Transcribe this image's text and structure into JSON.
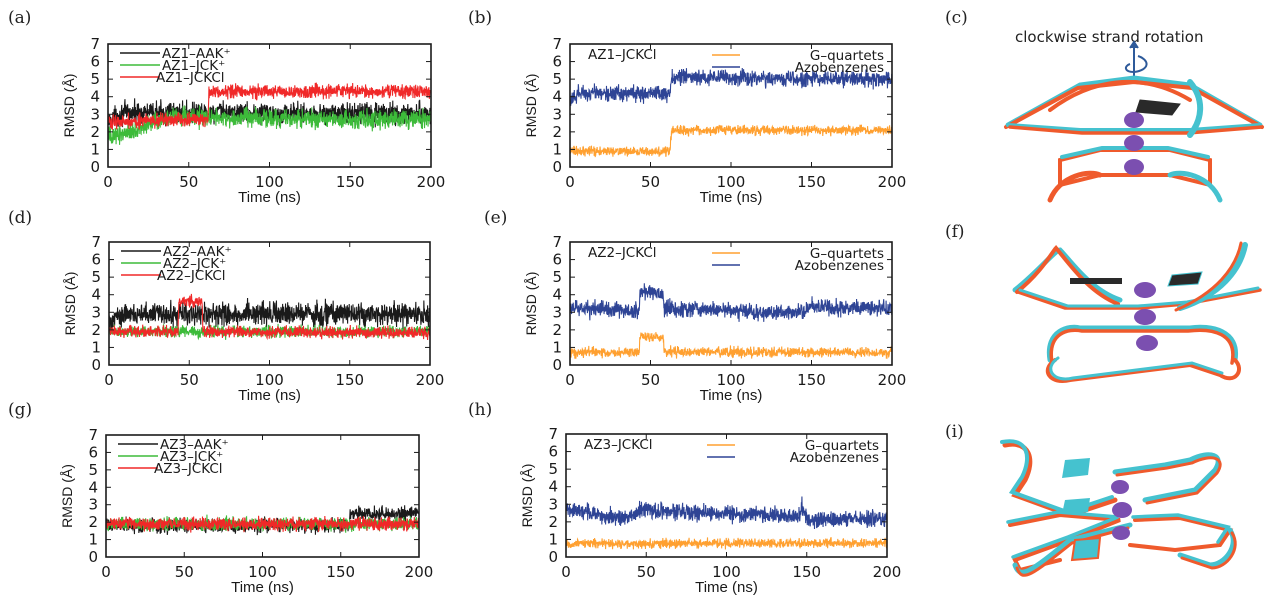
{
  "panel_labels": [
    "(a)",
    "(b)",
    "(c)",
    "(d)",
    "(e)",
    "(f)",
    "(g)",
    "(h)",
    "(i)"
  ],
  "colors": {
    "AAK": "#1a1a1a",
    "JCK": "#3dbb3a",
    "JCKCl": "#f02828",
    "g_quartets": "#ffa030",
    "azobenzenes": "#2e4495",
    "model_red": "#ef5a2c",
    "model_cyan": "#45c2cf",
    "model_dark": "#2a2a2a",
    "ion": "#7b4fb0"
  },
  "structure_panels": {
    "c": {
      "caption": "clockwise strand rotation",
      "icon": "rotation-arrow-icon"
    },
    "f": {},
    "i": {}
  },
  "chart_data": [
    {
      "id": "a",
      "type": "line",
      "xlabel": "Time (ns)",
      "ylabel": "RMSD (Å)",
      "xlim": [
        0,
        200
      ],
      "ylim": [
        0,
        7
      ],
      "xticks": [
        0,
        50,
        100,
        150,
        200
      ],
      "yticks": [
        0,
        1,
        2,
        3,
        4,
        5,
        6,
        7
      ],
      "legend_position": "top-left",
      "legend_title": "",
      "series": [
        {
          "name": "AZ1–AAK⁺",
          "color_key": "AAK",
          "noise": 0.45,
          "segments": [
            [
              0,
              2.6
            ],
            [
              10,
              3.1
            ],
            [
              60,
              3.1
            ],
            [
              200,
              3.0
            ]
          ]
        },
        {
          "name": "AZ1–JCK⁺",
          "color_key": "JCK",
          "noise": 0.4,
          "segments": [
            [
              0,
              1.7
            ],
            [
              20,
              2.2
            ],
            [
              40,
              3.0
            ],
            [
              60,
              2.8
            ],
            [
              200,
              2.7
            ]
          ]
        },
        {
          "name": "AZ1–JCKCl",
          "color_key": "JCKCl",
          "noise": 0.3,
          "segments": [
            [
              0,
              2.6
            ],
            [
              62,
              2.7
            ],
            [
              62.5,
              4.3
            ],
            [
              200,
              4.3
            ]
          ]
        }
      ]
    },
    {
      "id": "b",
      "type": "line",
      "xlabel": "Time (ns)",
      "ylabel": "RMSD (Å)",
      "xlim": [
        0,
        200
      ],
      "ylim": [
        0,
        7
      ],
      "xticks": [
        0,
        50,
        100,
        150,
        200
      ],
      "yticks": [
        0,
        1,
        2,
        3,
        4,
        5,
        6,
        7
      ],
      "legend_position": "top-right",
      "legend_title": "AZ1–JCKCl",
      "series": [
        {
          "name": "G–quartets",
          "color_key": "g_quartets",
          "noise": 0.2,
          "segments": [
            [
              0,
              0.9
            ],
            [
              62,
              0.85
            ],
            [
              63,
              2.1
            ],
            [
              200,
              2.1
            ]
          ]
        },
        {
          "name": "Azobenzenes",
          "color_key": "azobenzenes",
          "noise": 0.35,
          "segments": [
            [
              0,
              3.6
            ],
            [
              5,
              4.2
            ],
            [
              62,
              4.2
            ],
            [
              63,
              5.1
            ],
            [
              200,
              5.0
            ]
          ]
        }
      ]
    },
    {
      "id": "d",
      "type": "line",
      "xlabel": "Time (ns)",
      "ylabel": "RMSD (Å)",
      "xlim": [
        0,
        200
      ],
      "ylim": [
        0,
        7
      ],
      "xticks": [
        0,
        50,
        100,
        150,
        200
      ],
      "yticks": [
        0,
        1,
        2,
        3,
        4,
        5,
        6,
        7
      ],
      "legend_position": "top-left",
      "legend_title": "",
      "series": [
        {
          "name": "AZ2–AAK⁺",
          "color_key": "AAK",
          "noise": 0.5,
          "segments": [
            [
              0,
              2.3
            ],
            [
              5,
              2.9
            ],
            [
              200,
              2.9
            ]
          ]
        },
        {
          "name": "AZ2–JCK⁺",
          "color_key": "JCK",
          "noise": 0.25,
          "segments": [
            [
              0,
              1.9
            ],
            [
              200,
              1.9
            ]
          ]
        },
        {
          "name": "AZ2–JCKCl",
          "color_key": "JCKCl",
          "noise": 0.25,
          "segments": [
            [
              0,
              1.9
            ],
            [
              43,
              1.9
            ],
            [
              43.5,
              3.6
            ],
            [
              58,
              3.6
            ],
            [
              58.5,
              1.9
            ],
            [
              200,
              1.8
            ]
          ]
        }
      ]
    },
    {
      "id": "e",
      "type": "line",
      "xlabel": "Time (ns)",
      "ylabel": "RMSD (Å)",
      "xlim": [
        0,
        200
      ],
      "ylim": [
        0,
        7
      ],
      "xticks": [
        0,
        50,
        100,
        150,
        200
      ],
      "yticks": [
        0,
        1,
        2,
        3,
        4,
        5,
        6,
        7
      ],
      "legend_position": "top-right",
      "legend_title": "AZ2–JCKCl",
      "series": [
        {
          "name": "G–quartets",
          "color_key": "g_quartets",
          "noise": 0.22,
          "segments": [
            [
              0,
              0.7
            ],
            [
              43,
              0.75
            ],
            [
              43.5,
              1.6
            ],
            [
              58,
              1.6
            ],
            [
              58.5,
              0.75
            ],
            [
              200,
              0.7
            ]
          ]
        },
        {
          "name": "Azobenzenes",
          "color_key": "azobenzenes",
          "noise": 0.35,
          "segments": [
            [
              0,
              3.2
            ],
            [
              43,
              3.1
            ],
            [
              43.5,
              4.2
            ],
            [
              58,
              4.1
            ],
            [
              58.5,
              3.2
            ],
            [
              120,
              3.0
            ],
            [
              145,
              3.0
            ],
            [
              150,
              3.3
            ],
            [
              200,
              3.2
            ]
          ]
        }
      ]
    },
    {
      "id": "g",
      "type": "line",
      "xlabel": "Time (ns)",
      "ylabel": "RMSD (Å)",
      "xlim": [
        0,
        200
      ],
      "ylim": [
        0,
        7
      ],
      "xticks": [
        0,
        50,
        100,
        150,
        200
      ],
      "yticks": [
        0,
        1,
        2,
        3,
        4,
        5,
        6,
        7
      ],
      "legend_position": "top-left",
      "legend_title": "",
      "series": [
        {
          "name": "AZ3–AAK⁺",
          "color_key": "AAK",
          "noise": 0.3,
          "segments": [
            [
              0,
              1.8
            ],
            [
              155,
              1.8
            ],
            [
              156,
              2.5
            ],
            [
              200,
              2.5
            ]
          ]
        },
        {
          "name": "AZ3–JCK⁺",
          "color_key": "JCK",
          "noise": 0.28,
          "segments": [
            [
              0,
              1.9
            ],
            [
              200,
              1.9
            ]
          ]
        },
        {
          "name": "AZ3–JCKCl",
          "color_key": "JCKCl",
          "noise": 0.28,
          "segments": [
            [
              0,
              1.9
            ],
            [
              200,
              1.9
            ]
          ]
        }
      ]
    },
    {
      "id": "h",
      "type": "line",
      "xlabel": "Time (ns)",
      "ylabel": "RMSD (Å)",
      "xlim": [
        0,
        200
      ],
      "ylim": [
        0,
        7
      ],
      "xticks": [
        0,
        50,
        100,
        150,
        200
      ],
      "yticks": [
        0,
        1,
        2,
        3,
        4,
        5,
        6,
        7
      ],
      "legend_position": "top-right",
      "legend_title": "AZ3–JCKCl",
      "series": [
        {
          "name": "G–quartets",
          "color_key": "g_quartets",
          "noise": 0.2,
          "segments": [
            [
              0,
              0.75
            ],
            [
              200,
              0.8
            ]
          ]
        },
        {
          "name": "Azobenzenes",
          "color_key": "azobenzenes",
          "noise": 0.35,
          "segments": [
            [
              0,
              2.8
            ],
            [
              20,
              2.4
            ],
            [
              35,
              2.2
            ],
            [
              48,
              2.7
            ],
            [
              90,
              2.5
            ],
            [
              145,
              2.3
            ],
            [
              147,
              2.9
            ],
            [
              150,
              2.1
            ],
            [
              200,
              2.2
            ]
          ]
        }
      ]
    }
  ]
}
